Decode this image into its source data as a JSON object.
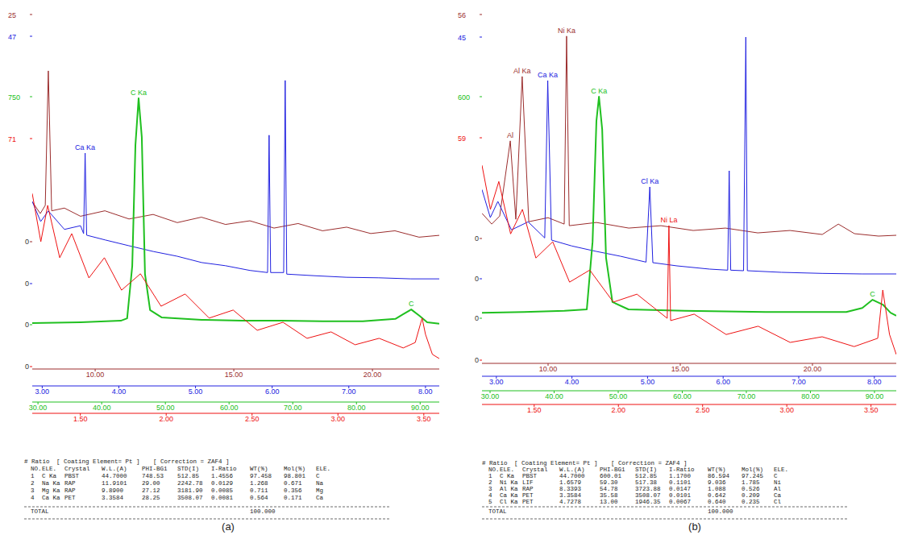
{
  "chart_data": [
    {
      "type": "line",
      "caption": "(a)",
      "series": [
        {
          "color": "#9b2d2d",
          "x": [
            7.73,
            8.02,
            8.2,
            8.31,
            8.43,
            8.89,
            9.47,
            10.35,
            11.22,
            12.09,
            12.96,
            13.83,
            14.7,
            15.58,
            16.45,
            17.32,
            18.2,
            19.07,
            19.94,
            20.81,
            21.68,
            22.41
          ],
          "values": [
            4.4,
            3.1,
            4.0,
            18.8,
            3.4,
            3.7,
            2.8,
            3.4,
            2.5,
            3.0,
            2.1,
            2.7,
            1.9,
            2.3,
            1.5,
            2.0,
            1.2,
            1.6,
            0.9,
            1.2,
            0.5,
            0.7
          ],
          "xlim": [
            7.73,
            22.41
          ],
          "xticks": [
            {
              "value": 10,
              "label": "10.00"
            },
            {
              "value": 15,
              "label": "15.00"
            },
            {
              "value": 20,
              "label": "20.00"
            }
          ],
          "ylim": [
            0,
            25
          ],
          "yticks": [
            0,
            25
          ]
        },
        {
          "color": "#2020e0",
          "x": [
            2.87,
            2.98,
            3.08,
            3.29,
            3.5,
            3.54,
            3.56,
            3.58,
            3.82,
            4.13,
            4.45,
            4.76,
            5.08,
            5.39,
            5.71,
            5.94,
            5.96,
            5.98,
            6.15,
            6.17,
            6.19,
            6.55,
            6.97,
            7.39,
            7.81,
            8.18
          ],
          "values": [
            15.6,
            11.8,
            13.8,
            10.3,
            11.0,
            9.5,
            24.8,
            9.2,
            8.3,
            7.2,
            6.1,
            5.2,
            4.0,
            3.4,
            2.5,
            2.1,
            28.2,
            2.1,
            2.1,
            38.6,
            1.8,
            1.5,
            1.2,
            1.1,
            0.9,
            0.9
          ],
          "xlim": [
            2.87,
            8.18
          ],
          "xticks": [
            {
              "value": 3,
              "label": "3.00"
            },
            {
              "value": 4,
              "label": "4.00"
            },
            {
              "value": 5,
              "label": "5.00"
            },
            {
              "value": 6,
              "label": "6.00"
            },
            {
              "value": 7,
              "label": "7.00"
            },
            {
              "value": 8,
              "label": "8.00"
            }
          ],
          "ylim": [
            0,
            47
          ],
          "yticks": [
            0,
            47
          ]
        },
        {
          "color": "#20c020",
          "x": [
            29.1,
            36.7,
            43.0,
            44.0,
            44.8,
            45.3,
            45.8,
            46.3,
            46.8,
            47.6,
            49.4,
            55.7,
            62.0,
            68.3,
            74.7,
            81.0,
            86.1,
            87.3,
            88.6,
            89.9,
            91.1,
            93.0
          ],
          "values": [
            5,
            8,
            13,
            21,
            193,
            591,
            745,
            617,
            167,
            48,
            24,
            16,
            13,
            13,
            11,
            11,
            19,
            34,
            50,
            29,
            8,
            3
          ],
          "xlim": [
            29.1,
            93.0
          ],
          "xticks": [
            {
              "value": 30,
              "label": "30.00"
            },
            {
              "value": 40,
              "label": "40.00"
            },
            {
              "value": 50,
              "label": "50.00"
            },
            {
              "value": 60,
              "label": "60.00"
            },
            {
              "value": 70,
              "label": "70.00"
            },
            {
              "value": 80,
              "label": "80.00"
            },
            {
              "value": 90,
              "label": "90.00"
            }
          ],
          "ylim": [
            0,
            750
          ],
          "yticks": [
            0,
            750
          ]
        },
        {
          "color": "#ee1111",
          "x": [
            1.22,
            1.27,
            1.31,
            1.38,
            1.45,
            1.55,
            1.64,
            1.74,
            1.85,
            1.97,
            2.11,
            2.25,
            2.39,
            2.53,
            2.68,
            2.82,
            2.96,
            3.1,
            3.24,
            3.38,
            3.45,
            3.49,
            3.51,
            3.55,
            3.59
          ],
          "values": [
            53.9,
            38.9,
            50.2,
            33.9,
            41.4,
            27.6,
            33.9,
            23.8,
            28.9,
            18.8,
            22.6,
            15.1,
            17.6,
            11.3,
            13.8,
            8.8,
            10.8,
            6.8,
            8.8,
            5.8,
            7.5,
            15.1,
            10.0,
            3.8,
            2.5
          ],
          "xlim": [
            1.22,
            3.59
          ],
          "xticks": [
            {
              "value": 1.5,
              "label": "1.50"
            },
            {
              "value": 2,
              "label": "2.00"
            },
            {
              "value": 2.5,
              "label": "2.50"
            },
            {
              "value": 3,
              "label": "3.00"
            },
            {
              "value": 3.5,
              "label": "3.50"
            }
          ],
          "ylim": [
            0,
            71
          ],
          "yticks": [
            0,
            71
          ]
        }
      ],
      "annotations": [
        {
          "text": "Ca Ka",
          "series": 1,
          "x": 3.56
        },
        {
          "text": "C Ka",
          "series": 2,
          "x": 45.8
        },
        {
          "text": "C",
          "series": 2,
          "x": 88.6
        }
      ],
      "table": {
        "heading": "# Ratio",
        "coating": "[ Coating Element= Pt ]",
        "correction": "[ Correction = ZAF4 ]",
        "columns": [
          "NO.",
          "ELE.",
          "Crystal",
          "W.L.(A)",
          "PHI-BG1",
          "STD(I)",
          "I-Ratio",
          "WT(%)",
          "Mol(%)",
          "ELE."
        ],
        "rows": [
          [
            "1",
            "C Ka",
            "PBST",
            "44.7000",
            "748.53",
            "512.85",
            "1.4556",
            "97.458",
            "98.801",
            "C"
          ],
          [
            "2",
            "Na Ka",
            "RAP",
            "11.9101",
            "29.00",
            "2242.78",
            "0.0129",
            "1.268",
            "0.671",
            "Na"
          ],
          [
            "3",
            "Mg Ka",
            "RAP",
            "9.8900",
            "27.12",
            "3181.90",
            "0.0085",
            "0.711",
            "0.356",
            "Mg"
          ],
          [
            "4",
            "Ca Ka",
            "PET",
            "3.3584",
            "28.25",
            "3508.07",
            "0.0081",
            "0.564",
            "0.171",
            "Ca"
          ]
        ],
        "total_label": "TOTAL",
        "total": "100.000"
      }
    },
    {
      "type": "line",
      "caption": "(b)",
      "series": [
        {
          "color": "#9b2d2d",
          "x": [
            7.5,
            7.87,
            8.17,
            8.57,
            8.78,
            9.02,
            9.27,
            10.0,
            10.61,
            10.7,
            10.8,
            11.83,
            13.05,
            14.27,
            15.49,
            16.71,
            17.93,
            19.15,
            20.37,
            20.98,
            21.59,
            22.5,
            23.17
          ],
          "values": [
            6.3,
            3.6,
            5.6,
            24.4,
            4.8,
            40.5,
            4.2,
            5.2,
            3.6,
            50.6,
            3.2,
            4.0,
            2.6,
            3.2,
            2.0,
            2.6,
            1.4,
            2.0,
            1.0,
            3.6,
            1.2,
            0.6,
            0.8
          ],
          "xlim": [
            7.5,
            23.17
          ],
          "xticks": [
            {
              "value": 10,
              "label": "10.00"
            },
            {
              "value": 15,
              "label": "15.00"
            },
            {
              "value": 20,
              "label": "20.00"
            }
          ],
          "ylim": [
            0,
            56
          ],
          "yticks": [
            0,
            56
          ]
        },
        {
          "color": "#2020e0",
          "x": [
            2.81,
            2.92,
            3.02,
            3.2,
            3.42,
            3.64,
            3.68,
            3.73,
            4.0,
            4.32,
            4.64,
            4.98,
            5.03,
            5.07,
            5.39,
            5.82,
            6.06,
            6.08,
            6.1,
            6.27,
            6.3,
            6.32,
            6.77,
            7.31,
            7.84,
            8.29
          ],
          "values": [
            16.6,
            11.4,
            14.4,
            9.1,
            10.6,
            7.6,
            36.9,
            7.2,
            6.1,
            5.1,
            4.2,
            3.1,
            17.1,
            3.0,
            2.4,
            1.8,
            1.6,
            20.1,
            1.6,
            1.5,
            45,
            1.5,
            1.2,
            1.0,
            0.9,
            0.9
          ],
          "xlim": [
            2.81,
            8.29
          ],
          "xticks": [
            {
              "value": 3,
              "label": "3.00"
            },
            {
              "value": 4,
              "label": "4.00"
            },
            {
              "value": 5,
              "label": "5.00"
            },
            {
              "value": 6,
              "label": "6.00"
            },
            {
              "value": 7,
              "label": "7.00"
            },
            {
              "value": 8,
              "label": "8.00"
            }
          ],
          "ylim": [
            0,
            45
          ],
          "yticks": [
            0,
            45
          ]
        },
        {
          "color": "#20c020",
          "x": [
            28.74,
            35.3,
            41.6,
            45.1,
            46.0,
            46.6,
            47.0,
            47.5,
            48.1,
            49.1,
            51.6,
            60.4,
            73.0,
            85.6,
            88.1,
            89.7,
            91.3,
            92.5,
            93.4
          ],
          "values": [
            15,
            17,
            20,
            24,
            207,
            534,
            600,
            512,
            164,
            44,
            24,
            20,
            17,
            17,
            28,
            50,
            37,
            15,
            7
          ],
          "xlim": [
            28.74,
            93.4
          ],
          "xticks": [
            {
              "value": 30,
              "label": "30.00"
            },
            {
              "value": 40,
              "label": "40.00"
            },
            {
              "value": 50,
              "label": "50.00"
            },
            {
              "value": 60,
              "label": "60.00"
            },
            {
              "value": 70,
              "label": "70.00"
            },
            {
              "value": 80,
              "label": "80.00"
            },
            {
              "value": 90,
              "label": "90.00"
            }
          ],
          "ylim": [
            0,
            600
          ],
          "yticks": [
            0,
            600
          ]
        },
        {
          "color": "#ee1111",
          "x": [
            1.19,
            1.24,
            1.29,
            1.36,
            1.43,
            1.51,
            1.61,
            1.71,
            1.83,
            1.97,
            2.11,
            2.29,
            2.3,
            2.31,
            2.45,
            2.64,
            2.83,
            3.02,
            3.21,
            3.4,
            3.54,
            3.57,
            3.61,
            3.65
          ],
          "values": [
            51.7,
            40.0,
            47.4,
            33.5,
            40.0,
            27.1,
            31.4,
            20.7,
            23.9,
            15.4,
            17.5,
            11.1,
            35.7,
            10.5,
            12.2,
            6.8,
            9.0,
            4.7,
            6.2,
            3.6,
            5.8,
            18.6,
            6.8,
            1.5
          ],
          "xlim": [
            1.19,
            3.65
          ],
          "xticks": [
            {
              "value": 1.5,
              "label": "1.50"
            },
            {
              "value": 2,
              "label": "2.00"
            },
            {
              "value": 2.5,
              "label": "2.50"
            },
            {
              "value": 3,
              "label": "3.00"
            },
            {
              "value": 3.5,
              "label": "3.50"
            }
          ],
          "ylim": [
            0,
            59
          ],
          "yticks": [
            0,
            59
          ]
        }
      ],
      "annotations": [
        {
          "text": "Al",
          "series": 0,
          "x": 8.57
        },
        {
          "text": "Al Ka",
          "series": 0,
          "x": 9.02
        },
        {
          "text": "Ni Ka",
          "series": 0,
          "x": 10.7
        },
        {
          "text": "Ca Ka",
          "series": 1,
          "x": 3.68
        },
        {
          "text": "C Ka",
          "series": 2,
          "x": 47.0
        },
        {
          "text": "Cl Ka",
          "series": 1,
          "x": 5.03
        },
        {
          "text": "Ni La",
          "series": 3,
          "x": 2.3
        },
        {
          "text": "C",
          "series": 2,
          "x": 89.7
        }
      ],
      "table": {
        "heading": "# Ratio",
        "coating": "[ Coating Element= Pt ]",
        "correction": "[ Correction = ZAF4 ]",
        "columns": [
          "NO.",
          "ELE.",
          "Crystal",
          "W.L.(A)",
          "PHI-BG1",
          "STD(I)",
          "I-Ratio",
          "WT(%)",
          "Mol(%)",
          "ELE."
        ],
        "rows": [
          [
            "1",
            "C Ka",
            "PBST",
            "44.7000",
            "600.01",
            "512.85",
            "1.1700",
            "86.594",
            "97.245",
            "C"
          ],
          [
            "2",
            "Ni Ka",
            "LIF",
            "1.6579",
            "59.30",
            "517.38",
            "0.1101",
            "9.036",
            "1.785",
            "Ni"
          ],
          [
            "3",
            "Al Ka",
            "RAP",
            "8.3393",
            "54.78",
            "3723.88",
            "0.0147",
            "1.088",
            "0.526",
            "Al"
          ],
          [
            "4",
            "Ca Ka",
            "PET",
            "3.3584",
            "35.58",
            "3508.07",
            "0.0101",
            "0.642",
            "0.209",
            "Ca"
          ],
          [
            "5",
            "Cl Ka",
            "PET",
            "4.7278",
            "13.00",
            "1946.35",
            "0.0067",
            "0.640",
            "0.235",
            "Cl"
          ]
        ],
        "total_label": "TOTAL",
        "total": "100.000"
      }
    }
  ]
}
